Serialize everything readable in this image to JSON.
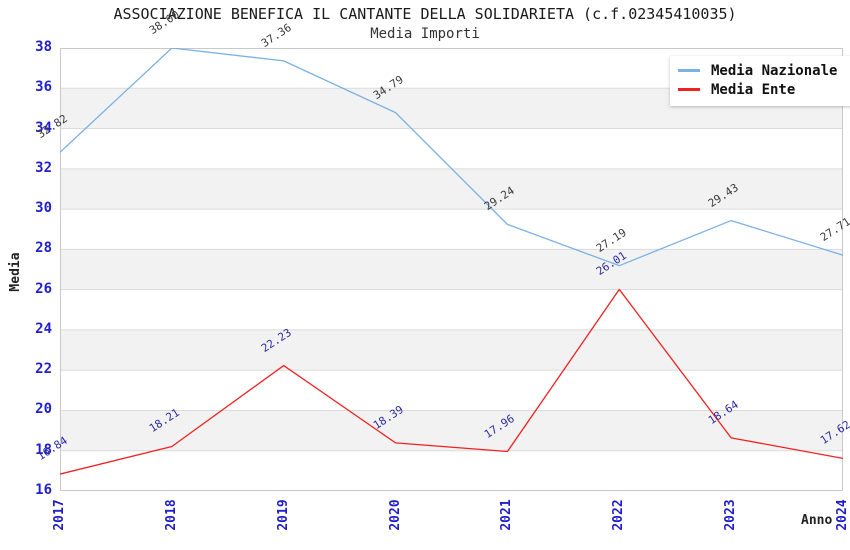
{
  "header": {
    "title": "ASSOCIAZIONE BENEFICA IL CANTANTE DELLA SOLIDARIETA (c.f.02345410035)",
    "subtitle": "Media Importi"
  },
  "legend": {
    "items": [
      {
        "label": "Media Nazionale",
        "color": "#7CB1E4"
      },
      {
        "label": "Media Ente",
        "color": "#F02121"
      }
    ]
  },
  "axes": {
    "y_label": "Media",
    "x_label": "Anno",
    "y_ticks": [
      38,
      36,
      34,
      32,
      30,
      28,
      26,
      24,
      22,
      20,
      18,
      16
    ],
    "x_ticks": [
      "2017",
      "2018",
      "2019",
      "2020",
      "2021",
      "2022",
      "2023",
      "2024"
    ],
    "tick_color": "#1F1FCB"
  },
  "chart_data": {
    "type": "line",
    "title": "Media Importi",
    "xlabel": "Anno",
    "ylabel": "Media",
    "x": [
      2017,
      2018,
      2019,
      2020,
      2021,
      2022,
      2023,
      2024
    ],
    "series": [
      {
        "name": "Media Nazionale",
        "color": "#7CB1E4",
        "label_color": "#3A3A3A",
        "values": [
          32.82,
          38.0,
          37.36,
          34.79,
          29.24,
          27.19,
          29.43,
          27.71
        ]
      },
      {
        "name": "Media Ente",
        "color": "#F02121",
        "label_color": "#2B2B9E",
        "values": [
          16.84,
          18.21,
          22.23,
          18.39,
          17.96,
          26.01,
          18.64,
          17.62
        ]
      }
    ],
    "ylim": [
      16,
      38
    ],
    "ytick_step": 2,
    "grid": "horizontal-alternating-bands",
    "band_color": "#F2F2F2",
    "gridline_color": "#DBDBDB",
    "border_color": "#C9C9C9",
    "legend_position": "top-right",
    "value_labels": "shown-rotated"
  }
}
